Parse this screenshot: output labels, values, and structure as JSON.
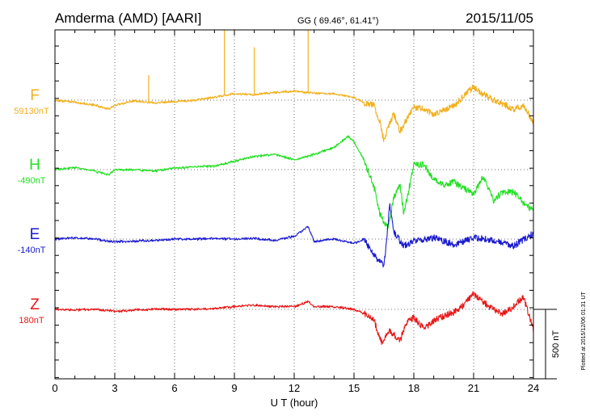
{
  "header": {
    "station": "Amderma (AMD)  [AARI]",
    "coords": "GG ( 69.46°,  61.41°)",
    "date": "2015/11/05"
  },
  "footer": {
    "plotted_note": "Plotted at 2015/12/06 01:31  UT"
  },
  "colors": {
    "F": "#f2b01e",
    "H": "#22e022",
    "E": "#1a1ad0",
    "Z": "#e81616",
    "axis": "#000000",
    "grid": "#444444"
  },
  "chart_data": {
    "type": "line",
    "title": "",
    "xlabel": "U T (hour)",
    "ylabel": "",
    "xlim": [
      0,
      24
    ],
    "x_ticks": [
      0,
      3,
      6,
      9,
      12,
      15,
      18,
      21,
      24
    ],
    "x_tick_labels": [
      "0",
      "3",
      "6",
      "9",
      "12",
      "15",
      "18",
      "21",
      "24"
    ],
    "grid": "dotted",
    "scale_bar": {
      "label": "500 nT",
      "nT": 500
    },
    "series": [
      {
        "name": "F",
        "baseline_label": "59130nT",
        "points": [
          [
            0,
            0
          ],
          [
            1,
            -15
          ],
          [
            2,
            -35
          ],
          [
            2.7,
            -65
          ],
          [
            3,
            -35
          ],
          [
            4,
            -5
          ],
          [
            5,
            -20
          ],
          [
            6,
            -10
          ],
          [
            7,
            0
          ],
          [
            8,
            20
          ],
          [
            8.5,
            35
          ],
          [
            9,
            45
          ],
          [
            10,
            40
          ],
          [
            11,
            55
          ],
          [
            12,
            65
          ],
          [
            13,
            50
          ],
          [
            14,
            45
          ],
          [
            15,
            20
          ],
          [
            15.5,
            -20
          ],
          [
            16,
            -40
          ],
          [
            16.3,
            -160
          ],
          [
            16.5,
            -290
          ],
          [
            16.7,
            -200
          ],
          [
            17,
            -100
          ],
          [
            17.3,
            -230
          ],
          [
            17.6,
            -150
          ],
          [
            18,
            -50
          ],
          [
            18.5,
            -60
          ],
          [
            19,
            -110
          ],
          [
            19.5,
            -70
          ],
          [
            20,
            -40
          ],
          [
            20.5,
            30
          ],
          [
            21,
            95
          ],
          [
            21.3,
            60
          ],
          [
            22,
            0
          ],
          [
            22.5,
            -30
          ],
          [
            23,
            -70
          ],
          [
            23.5,
            -40
          ],
          [
            24,
            -165
          ]
        ],
        "spikes": [
          [
            4.7,
            180
          ],
          [
            8.5,
            620
          ],
          [
            10,
            380
          ],
          [
            12.7,
            590
          ]
        ]
      },
      {
        "name": "H",
        "baseline_label": "-490nT",
        "points": [
          [
            0,
            0
          ],
          [
            1,
            15
          ],
          [
            2,
            -10
          ],
          [
            2.7,
            -40
          ],
          [
            3,
            0
          ],
          [
            4,
            0
          ],
          [
            5,
            -10
          ],
          [
            6,
            10
          ],
          [
            7,
            20
          ],
          [
            8,
            25
          ],
          [
            9,
            60
          ],
          [
            10,
            95
          ],
          [
            11,
            110
          ],
          [
            12,
            70
          ],
          [
            12.5,
            90
          ],
          [
            13,
            110
          ],
          [
            14,
            160
          ],
          [
            14.7,
            240
          ],
          [
            15,
            200
          ],
          [
            15.5,
            70
          ],
          [
            16,
            -120
          ],
          [
            16.3,
            -320
          ],
          [
            16.7,
            -420
          ],
          [
            17,
            -200
          ],
          [
            17.3,
            -100
          ],
          [
            17.5,
            -320
          ],
          [
            18,
            30
          ],
          [
            18.5,
            40
          ],
          [
            19,
            -70
          ],
          [
            19.5,
            -110
          ],
          [
            20,
            -90
          ],
          [
            21,
            -180
          ],
          [
            21.5,
            -50
          ],
          [
            22,
            -220
          ],
          [
            22.5,
            -160
          ],
          [
            23,
            -160
          ],
          [
            23.5,
            -240
          ],
          [
            24,
            -300
          ]
        ],
        "spikes": []
      },
      {
        "name": "E",
        "baseline_label": "-140nT",
        "points": [
          [
            0,
            0
          ],
          [
            1,
            10
          ],
          [
            2,
            0
          ],
          [
            3,
            -20
          ],
          [
            4,
            -15
          ],
          [
            5,
            -10
          ],
          [
            6,
            0
          ],
          [
            7,
            0
          ],
          [
            8,
            5
          ],
          [
            9,
            0
          ],
          [
            10,
            5
          ],
          [
            11,
            -10
          ],
          [
            12,
            20
          ],
          [
            12.7,
            90
          ],
          [
            13,
            -20
          ],
          [
            14,
            0
          ],
          [
            15,
            -30
          ],
          [
            15.5,
            0
          ],
          [
            16,
            -120
          ],
          [
            16.3,
            -160
          ],
          [
            16.5,
            -200
          ],
          [
            16.8,
            250
          ],
          [
            17,
            50
          ],
          [
            17.5,
            -50
          ],
          [
            18,
            -15
          ],
          [
            19,
            10
          ],
          [
            20,
            -40
          ],
          [
            21,
            10
          ],
          [
            22,
            -10
          ],
          [
            23,
            -50
          ],
          [
            24,
            40
          ]
        ],
        "spikes": []
      },
      {
        "name": "Z",
        "baseline_label": "180nT",
        "points": [
          [
            0,
            0
          ],
          [
            1,
            -5
          ],
          [
            2,
            0
          ],
          [
            3,
            -15
          ],
          [
            4,
            -5
          ],
          [
            5,
            0
          ],
          [
            6,
            0
          ],
          [
            7,
            0
          ],
          [
            8,
            5
          ],
          [
            9,
            20
          ],
          [
            10,
            30
          ],
          [
            11,
            20
          ],
          [
            12,
            20
          ],
          [
            12.7,
            55
          ],
          [
            13,
            20
          ],
          [
            14,
            20
          ],
          [
            15,
            0
          ],
          [
            15.5,
            -30
          ],
          [
            16,
            -80
          ],
          [
            16.4,
            -240
          ],
          [
            16.7,
            -150
          ],
          [
            17,
            -180
          ],
          [
            17.3,
            -230
          ],
          [
            17.6,
            -100
          ],
          [
            18,
            -60
          ],
          [
            18.5,
            -140
          ],
          [
            19,
            -80
          ],
          [
            20,
            -20
          ],
          [
            20.5,
            30
          ],
          [
            21,
            110
          ],
          [
            21.5,
            50
          ],
          [
            22,
            0
          ],
          [
            22.5,
            -30
          ],
          [
            23,
            20
          ],
          [
            23.5,
            90
          ],
          [
            24,
            -150
          ]
        ],
        "spikes": []
      }
    ]
  }
}
